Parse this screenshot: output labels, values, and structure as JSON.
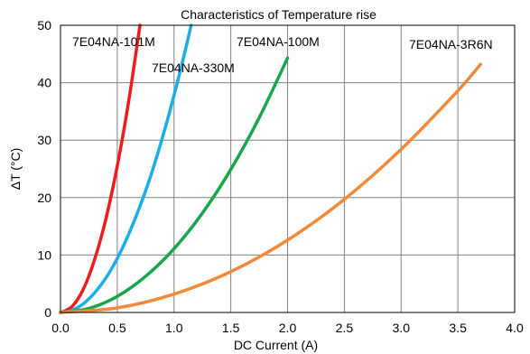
{
  "chart_data": {
    "type": "line",
    "title": "Characteristics of Temperature rise",
    "xlabel": "DC Current (A)",
    "ylabel": "ΔT (°C)",
    "xlim": [
      0,
      4
    ],
    "ylim": [
      0,
      50
    ],
    "x_ticks": [
      "0.0",
      "0.5",
      "1.0",
      "1.5",
      "2.0",
      "2.5",
      "3.0",
      "3.5",
      "4.0"
    ],
    "y_ticks": [
      "0",
      "10",
      "20",
      "30",
      "40",
      "50"
    ],
    "grid": true,
    "series": [
      {
        "name": "7E04NA-101M",
        "color": "#ee1c1c",
        "x": [
          0,
          0.1,
          0.2,
          0.3,
          0.4,
          0.5,
          0.6,
          0.7
        ],
        "y": [
          0,
          1.0,
          4.0,
          9.2,
          16.3,
          25.5,
          36.7,
          50.0
        ]
      },
      {
        "name": "7E04NA-330M",
        "color": "#1aaee6",
        "x": [
          0,
          0.1,
          0.2,
          0.3,
          0.4,
          0.5,
          0.6,
          0.7,
          0.8,
          0.9,
          1.0,
          1.1,
          1.15
        ],
        "y": [
          0,
          0.4,
          1.5,
          3.4,
          6.0,
          9.4,
          13.6,
          18.5,
          24.1,
          30.6,
          37.8,
          45.7,
          50.0
        ]
      },
      {
        "name": "7E04NA-100M",
        "color": "#17a64a",
        "x": [
          0,
          0.25,
          0.5,
          0.75,
          1.0,
          1.25,
          1.5,
          1.75,
          2.0
        ],
        "y": [
          0,
          0.7,
          2.8,
          6.3,
          11.1,
          17.3,
          24.9,
          33.9,
          44.3
        ]
      },
      {
        "name": "7E04NA-3R6N",
        "color": "#f08a3a",
        "x": [
          0,
          0.5,
          1.0,
          1.5,
          2.0,
          2.5,
          3.0,
          3.5,
          3.7
        ],
        "y": [
          0,
          0.8,
          3.2,
          7.1,
          12.6,
          19.7,
          28.4,
          38.6,
          43.2
        ]
      }
    ]
  }
}
